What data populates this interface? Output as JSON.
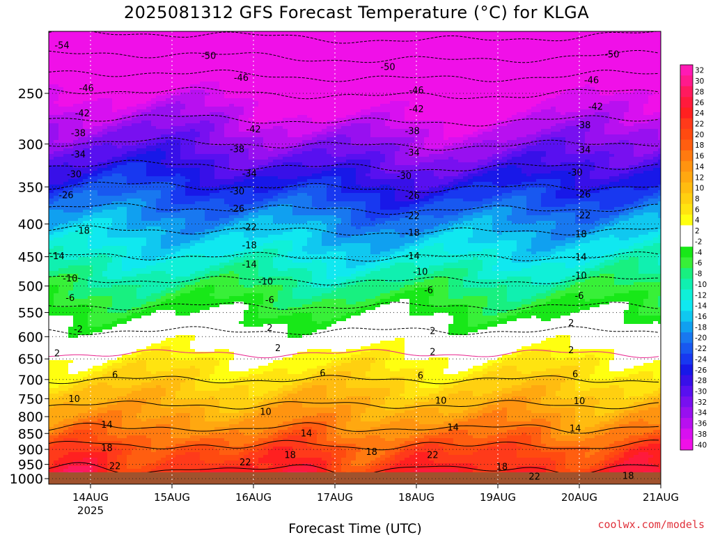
{
  "title": "2025081312 GFS Forecast Temperature (°C) for KLGA",
  "credit": "coolwx.com/models",
  "chart_data": {
    "type": "heatmap",
    "title": "2025081312 GFS Forecast Temperature (°C) for KLGA",
    "xlabel": "Forecast Time (UTC)",
    "ylabel": "",
    "x_ticks": [
      {
        "day": 14,
        "label": "14AUG",
        "sublabel": "2025"
      },
      {
        "day": 15,
        "label": "15AUG",
        "sublabel": ""
      },
      {
        "day": 16,
        "label": "16AUG",
        "sublabel": ""
      },
      {
        "day": 17,
        "label": "17AUG",
        "sublabel": ""
      },
      {
        "day": 18,
        "label": "18AUG",
        "sublabel": ""
      },
      {
        "day": 19,
        "label": "19AUG",
        "sublabel": ""
      },
      {
        "day": 20,
        "label": "20AUG",
        "sublabel": ""
      },
      {
        "day": 21,
        "label": "21AUG",
        "sublabel": ""
      }
    ],
    "xlim": [
      13.5,
      21.0
    ],
    "y_ticks": [
      250,
      300,
      350,
      400,
      450,
      500,
      550,
      600,
      650,
      700,
      750,
      800,
      850,
      900,
      950,
      1000
    ],
    "ylim": [
      1020,
      200
    ],
    "y_scale": "log-pressure (hPa)",
    "colorbar": {
      "levels": [
        32,
        30,
        28,
        26,
        24,
        22,
        20,
        18,
        16,
        14,
        12,
        10,
        8,
        6,
        4,
        2,
        -2,
        -4,
        -6,
        -8,
        -10,
        -12,
        -14,
        -16,
        -18,
        -20,
        -22,
        -24,
        -26,
        -28,
        -30,
        -32,
        -34,
        -36,
        -38,
        -40
      ],
      "colors": [
        "#ff1ab4",
        "#ff1a8c",
        "#ff1a5e",
        "#ff1a3c",
        "#ff2020",
        "#ff3a1a",
        "#ff4a10",
        "#ff5e10",
        "#ff7a10",
        "#ff9410",
        "#ffa810",
        "#ffbc10",
        "#ffd010",
        "#ffe410",
        "#ffff10",
        "#ffffff",
        "#ffffff",
        "#18e818",
        "#38f038",
        "#18f080",
        "#10f0b0",
        "#10f0d8",
        "#10e8f0",
        "#10c8f0",
        "#10a0f0",
        "#1878f0",
        "#1858f0",
        "#1838f0",
        "#1818e8",
        "#3810e8",
        "#5810f0",
        "#7810f0",
        "#9810f0",
        "#b810f0",
        "#d810f0",
        "#f010e8"
      ],
      "labels": [
        "32",
        "30",
        "28",
        "26",
        "24",
        "22",
        "20",
        "18",
        "16",
        "14",
        "12",
        "10",
        "8",
        "6",
        "4",
        "2",
        "-2",
        "-4",
        "-6",
        "-8",
        "-10",
        "-12",
        "-14",
        "-16",
        "-18",
        "-20",
        "-22",
        "-24",
        "-26",
        "-28",
        "-30",
        "-32",
        "-34",
        "-36",
        "-38",
        "-40"
      ]
    },
    "profile": [
      {
        "p": 1000,
        "t": 24
      },
      {
        "p": 950,
        "t": 21
      },
      {
        "p": 900,
        "t": 19
      },
      {
        "p": 850,
        "t": 15
      },
      {
        "p": 800,
        "t": 12
      },
      {
        "p": 750,
        "t": 9
      },
      {
        "p": 700,
        "t": 6
      },
      {
        "p": 650,
        "t": 3
      },
      {
        "p": 600,
        "t": -1
      },
      {
        "p": 550,
        "t": -5
      },
      {
        "p": 500,
        "t": -9
      },
      {
        "p": 450,
        "t": -14
      },
      {
        "p": 400,
        "t": -19
      },
      {
        "p": 350,
        "t": -26
      },
      {
        "p": 300,
        "t": -34
      },
      {
        "p": 250,
        "t": -42
      },
      {
        "p": 200,
        "t": -55
      }
    ],
    "contour_labels": [
      {
        "label": "-54",
        "day": 13.65,
        "p": 210
      },
      {
        "label": "-50",
        "day": 15.45,
        "p": 218
      },
      {
        "label": "-50",
        "day": 17.65,
        "p": 227
      },
      {
        "label": "-50",
        "day": 20.4,
        "p": 217
      },
      {
        "label": "-46",
        "day": 13.95,
        "p": 245
      },
      {
        "label": "-46",
        "day": 15.85,
        "p": 236
      },
      {
        "label": "-46",
        "day": 18.0,
        "p": 247
      },
      {
        "label": "-46",
        "day": 20.15,
        "p": 238
      },
      {
        "label": "-42",
        "day": 13.9,
        "p": 268
      },
      {
        "label": "-42",
        "day": 16.0,
        "p": 284
      },
      {
        "label": "-42",
        "day": 18.0,
        "p": 264
      },
      {
        "label": "-42",
        "day": 20.2,
        "p": 262
      },
      {
        "label": "-38",
        "day": 13.85,
        "p": 288
      },
      {
        "label": "-38",
        "day": 15.8,
        "p": 305
      },
      {
        "label": "-38",
        "day": 17.95,
        "p": 286
      },
      {
        "label": "-38",
        "day": 20.05,
        "p": 280
      },
      {
        "label": "-34",
        "day": 13.85,
        "p": 311
      },
      {
        "label": "-34",
        "day": 15.95,
        "p": 333
      },
      {
        "label": "-34",
        "day": 17.95,
        "p": 309
      },
      {
        "label": "-34",
        "day": 20.05,
        "p": 306
      },
      {
        "label": "-30",
        "day": 13.8,
        "p": 334
      },
      {
        "label": "-30",
        "day": 15.8,
        "p": 355
      },
      {
        "label": "-30",
        "day": 17.85,
        "p": 336
      },
      {
        "label": "-30",
        "day": 19.95,
        "p": 332
      },
      {
        "label": "-26",
        "day": 13.7,
        "p": 360
      },
      {
        "label": "-26",
        "day": 15.8,
        "p": 378
      },
      {
        "label": "-26",
        "day": 17.95,
        "p": 361
      },
      {
        "label": "-26",
        "day": 20.05,
        "p": 359
      },
      {
        "label": "-22",
        "day": 15.95,
        "p": 404
      },
      {
        "label": "-22",
        "day": 17.95,
        "p": 388
      },
      {
        "label": "-22",
        "day": 20.05,
        "p": 387
      },
      {
        "label": "-18",
        "day": 13.9,
        "p": 409
      },
      {
        "label": "-18",
        "day": 15.95,
        "p": 431
      },
      {
        "label": "-18",
        "day": 17.95,
        "p": 412
      },
      {
        "label": "-18",
        "day": 20.0,
        "p": 414
      },
      {
        "label": "-14",
        "day": 13.5,
        "p": 448
      },
      {
        "label": "-14",
        "day": 15.95,
        "p": 462
      },
      {
        "label": "-14",
        "day": 17.95,
        "p": 448
      },
      {
        "label": "-14",
        "day": 20.0,
        "p": 450
      },
      {
        "label": "-10",
        "day": 13.75,
        "p": 486
      },
      {
        "label": "-10",
        "day": 16.15,
        "p": 491
      },
      {
        "label": "-10",
        "day": 18.05,
        "p": 474
      },
      {
        "label": "-10",
        "day": 20.0,
        "p": 481
      },
      {
        "label": "-6",
        "day": 13.75,
        "p": 521
      },
      {
        "label": "-6",
        "day": 16.2,
        "p": 525
      },
      {
        "label": "-6",
        "day": 18.15,
        "p": 507
      },
      {
        "label": "-6",
        "day": 20.0,
        "p": 517
      },
      {
        "label": "-2",
        "day": 13.85,
        "p": 583
      },
      {
        "label": "2",
        "day": 16.2,
        "p": 580
      },
      {
        "label": "2",
        "day": 18.2,
        "p": 587
      },
      {
        "label": "2",
        "day": 19.9,
        "p": 570
      },
      {
        "label": "2",
        "day": 13.5,
        "p": 636
      },
      {
        "label": "2",
        "day": 16.3,
        "p": 624
      },
      {
        "label": "2",
        "day": 18.2,
        "p": 633
      },
      {
        "label": "2",
        "day": 19.9,
        "p": 629
      },
      {
        "label": "6",
        "day": 14.3,
        "p": 687
      },
      {
        "label": "6",
        "day": 16.85,
        "p": 683
      },
      {
        "label": "6",
        "day": 18.05,
        "p": 689
      },
      {
        "label": "6",
        "day": 19.95,
        "p": 686
      },
      {
        "label": "10",
        "day": 13.8,
        "p": 749
      },
      {
        "label": "10",
        "day": 16.15,
        "p": 785
      },
      {
        "label": "10",
        "day": 18.3,
        "p": 754
      },
      {
        "label": "10",
        "day": 20.0,
        "p": 755
      },
      {
        "label": "14",
        "day": 14.2,
        "p": 822
      },
      {
        "label": "14",
        "day": 16.65,
        "p": 848
      },
      {
        "label": "14",
        "day": 18.45,
        "p": 830
      },
      {
        "label": "14",
        "day": 19.95,
        "p": 834
      },
      {
        "label": "18",
        "day": 14.2,
        "p": 894
      },
      {
        "label": "18",
        "day": 16.45,
        "p": 917
      },
      {
        "label": "18",
        "day": 17.45,
        "p": 907
      },
      {
        "label": "18",
        "day": 19.05,
        "p": 957
      },
      {
        "label": "18",
        "day": 20.6,
        "p": 989
      },
      {
        "label": "22",
        "day": 14.3,
        "p": 954
      },
      {
        "label": "22",
        "day": 15.9,
        "p": 941
      },
      {
        "label": "22",
        "day": 18.2,
        "p": 917
      },
      {
        "label": "22",
        "day": 19.45,
        "p": 991
      }
    ]
  }
}
